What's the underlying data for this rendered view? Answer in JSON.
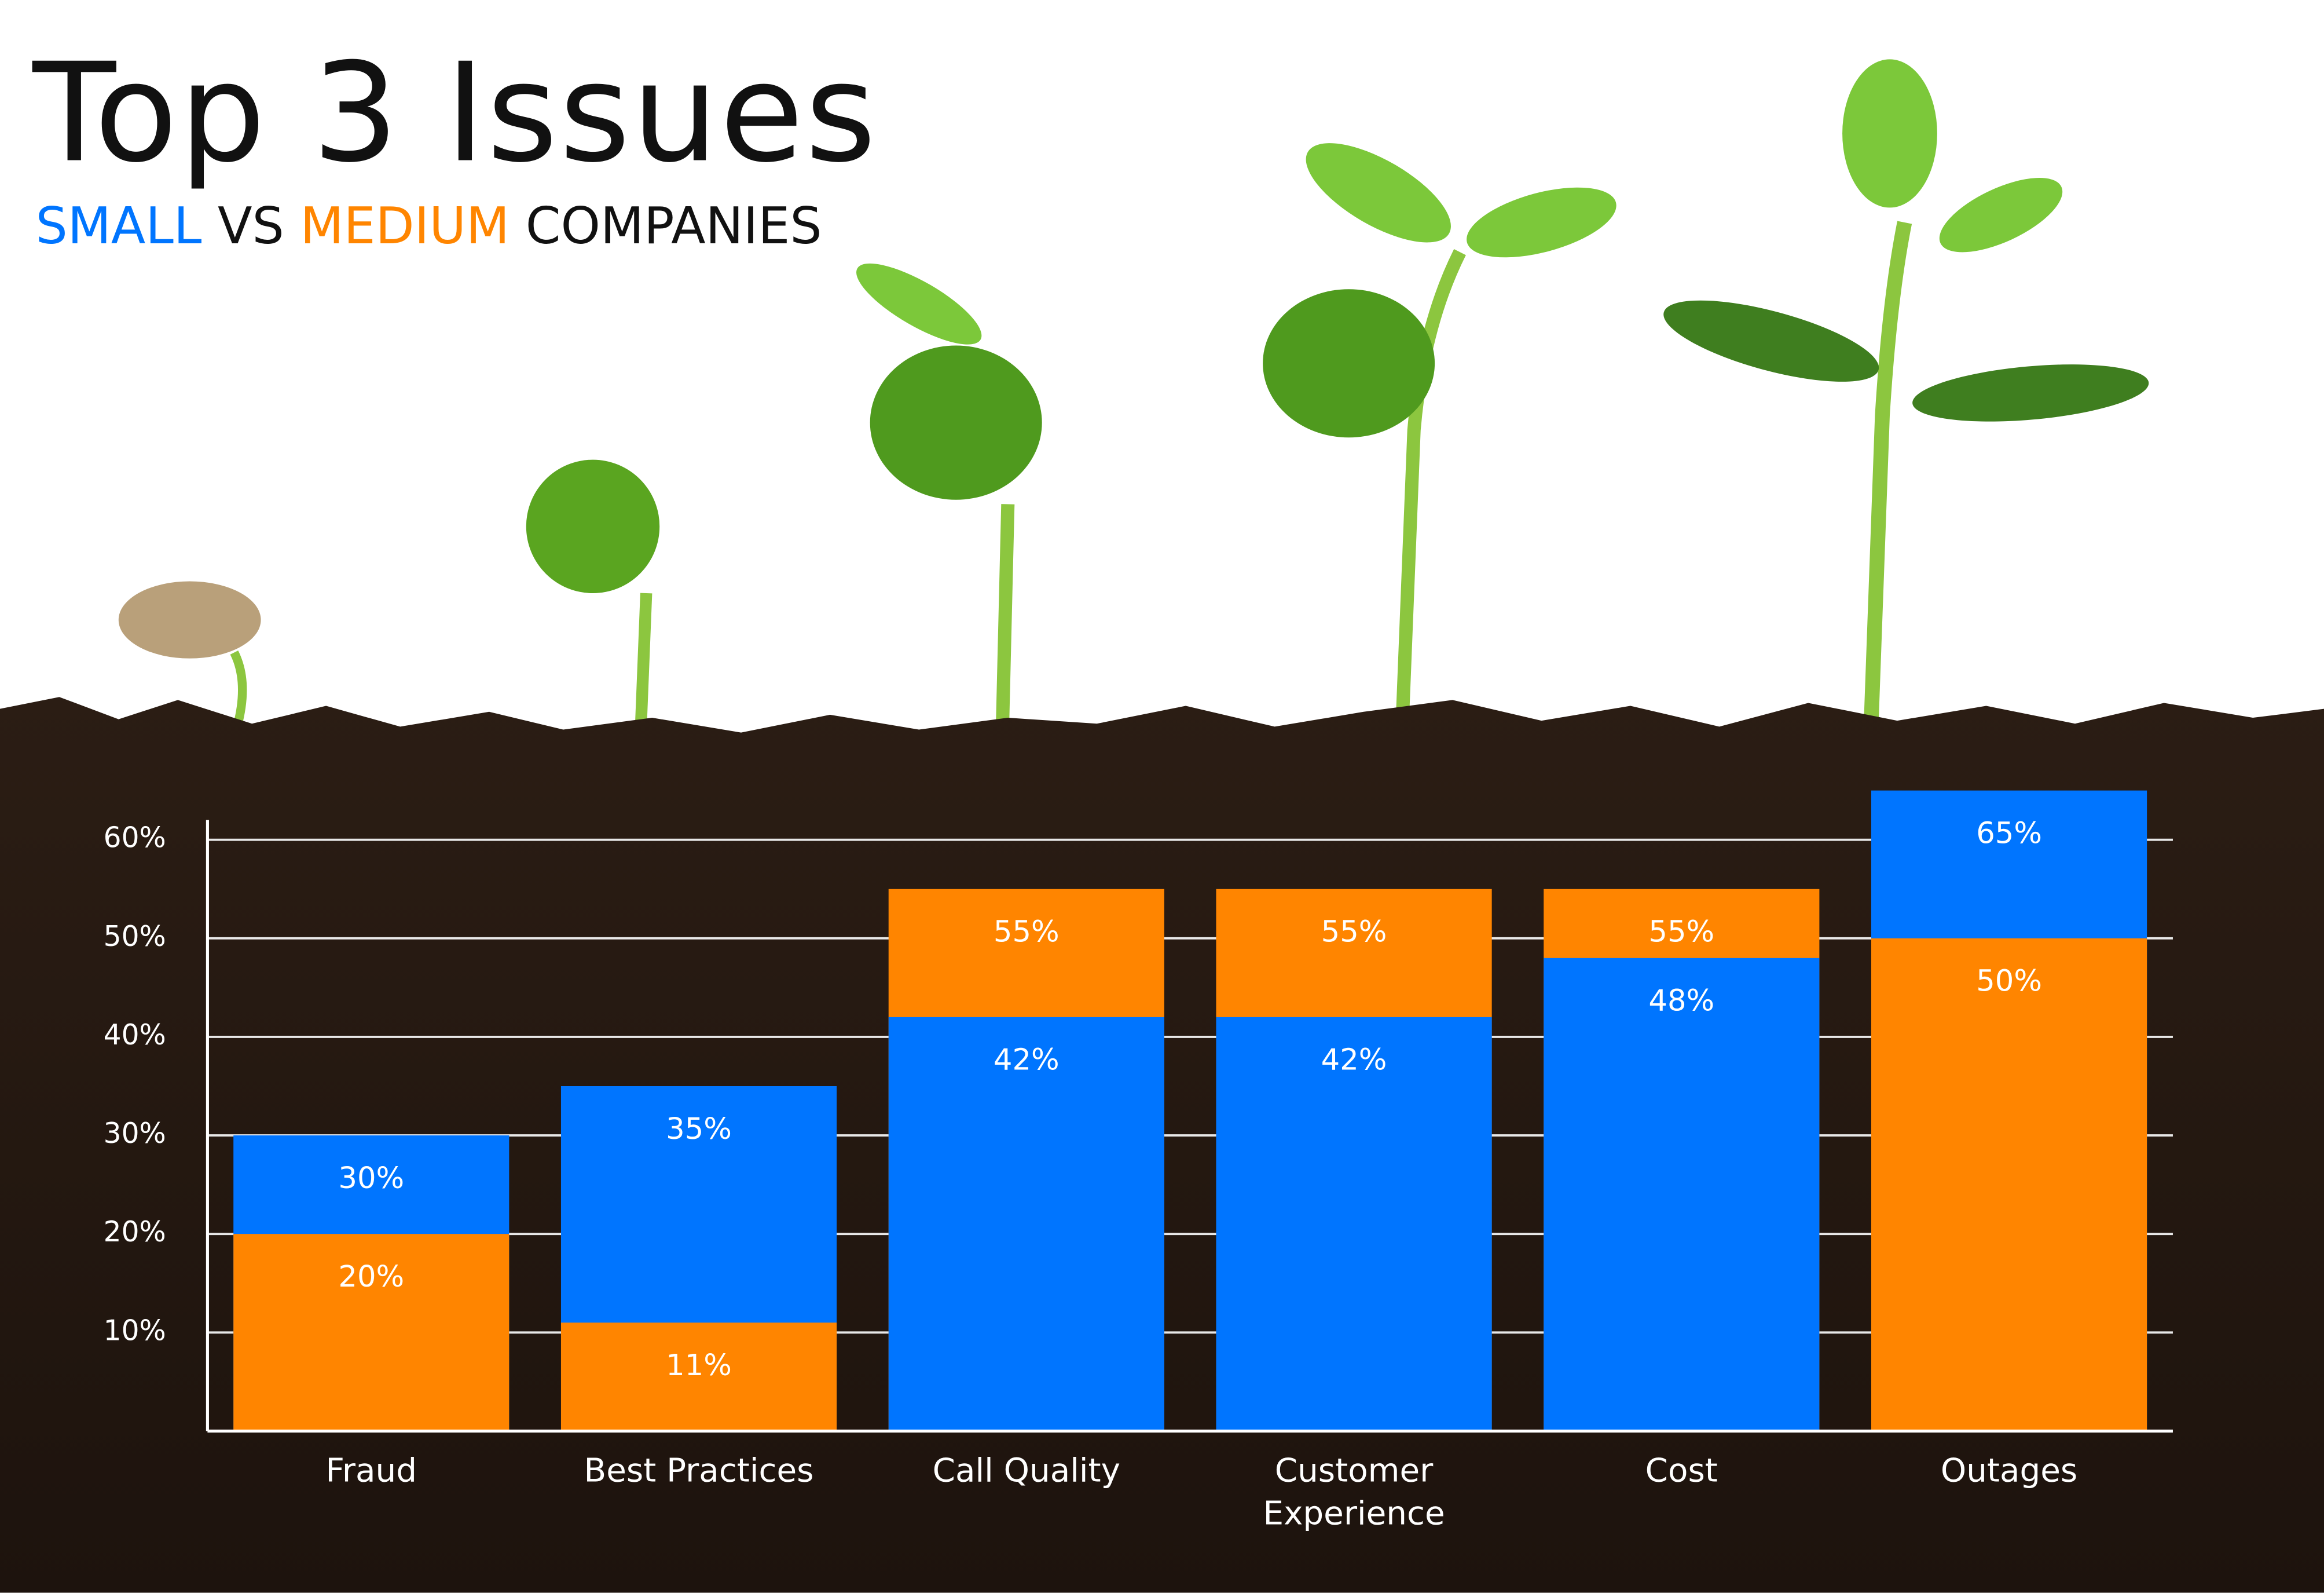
{
  "chart_data": {
    "type": "bar",
    "title": "Top 3 Issues",
    "subtitle": {
      "joiner": "VS",
      "suffix": "COMPANIES"
    },
    "categories": [
      "Fraud",
      "Best Practices",
      "Call Quality",
      "Customer Experience",
      "Cost",
      "Outages"
    ],
    "series": [
      {
        "name": "SMALL",
        "color": "#0075ff",
        "values": [
          30,
          35,
          42,
          42,
          48,
          65
        ],
        "value_labels": [
          "30%",
          "35%",
          "42%",
          "42%",
          "48%",
          "65%"
        ]
      },
      {
        "name": "MEDIUM",
        "color": "#ff8500",
        "values": [
          20,
          11,
          55,
          55,
          55,
          50
        ],
        "value_labels": [
          "20%",
          "11%",
          "55%",
          "55%",
          "55%",
          "50%"
        ]
      }
    ],
    "ylim": [
      0,
      62
    ],
    "yticks": [
      {
        "value": 10,
        "label": "10%"
      },
      {
        "value": 20,
        "label": "20%"
      },
      {
        "value": 30,
        "label": "30%"
      },
      {
        "value": 40,
        "label": "40%"
      },
      {
        "value": 50,
        "label": "50%"
      },
      {
        "value": 60,
        "label": "60%"
      }
    ],
    "grid": true
  }
}
